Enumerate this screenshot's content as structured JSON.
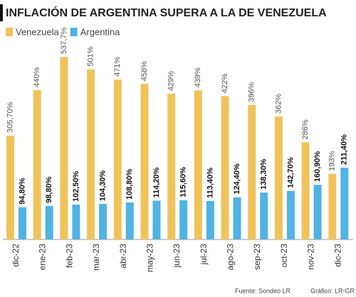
{
  "chart_data": {
    "type": "bar",
    "title": "INFLACIÓN DE ARGENTINA SUPERA A LA DE VENEZUELA",
    "categories": [
      "dic-22",
      "ene-23",
      "feb-23",
      "mar-23",
      "abr-23",
      "may-23",
      "jun-23",
      "jul-23",
      "ago-23",
      "sep-23",
      "oct-23",
      "nov-23",
      "dic-23"
    ],
    "series": [
      {
        "name": "Venezuela",
        "color": "#f0c35a",
        "values": [
          305.7,
          440,
          537.7,
          501,
          471,
          458,
          429,
          439,
          422,
          396,
          362,
          286,
          193
        ],
        "value_labels": [
          "305,70%",
          "440%",
          "537,7%",
          "501%",
          "471%",
          "458%",
          "429%",
          "439%",
          "422%",
          "396%",
          "362%",
          "286%",
          "193%"
        ]
      },
      {
        "name": "Argentina",
        "color": "#4fb3e3",
        "values": [
          94.8,
          98.8,
          102.5,
          104.3,
          108.8,
          114.2,
          115.6,
          113.4,
          124.4,
          138.3,
          142.7,
          160.9,
          211.4
        ],
        "value_labels": [
          "94,80%",
          "98,80%",
          "102,50%",
          "104,30%",
          "108,80%",
          "114,20%",
          "115,60%",
          "113,40%",
          "124,40%",
          "138,30%",
          "142,70%",
          "160,90%",
          "211,40%"
        ]
      }
    ],
    "source": "Fuente: Sondeo LR",
    "credit": "Gráfico: LR-GR"
  }
}
